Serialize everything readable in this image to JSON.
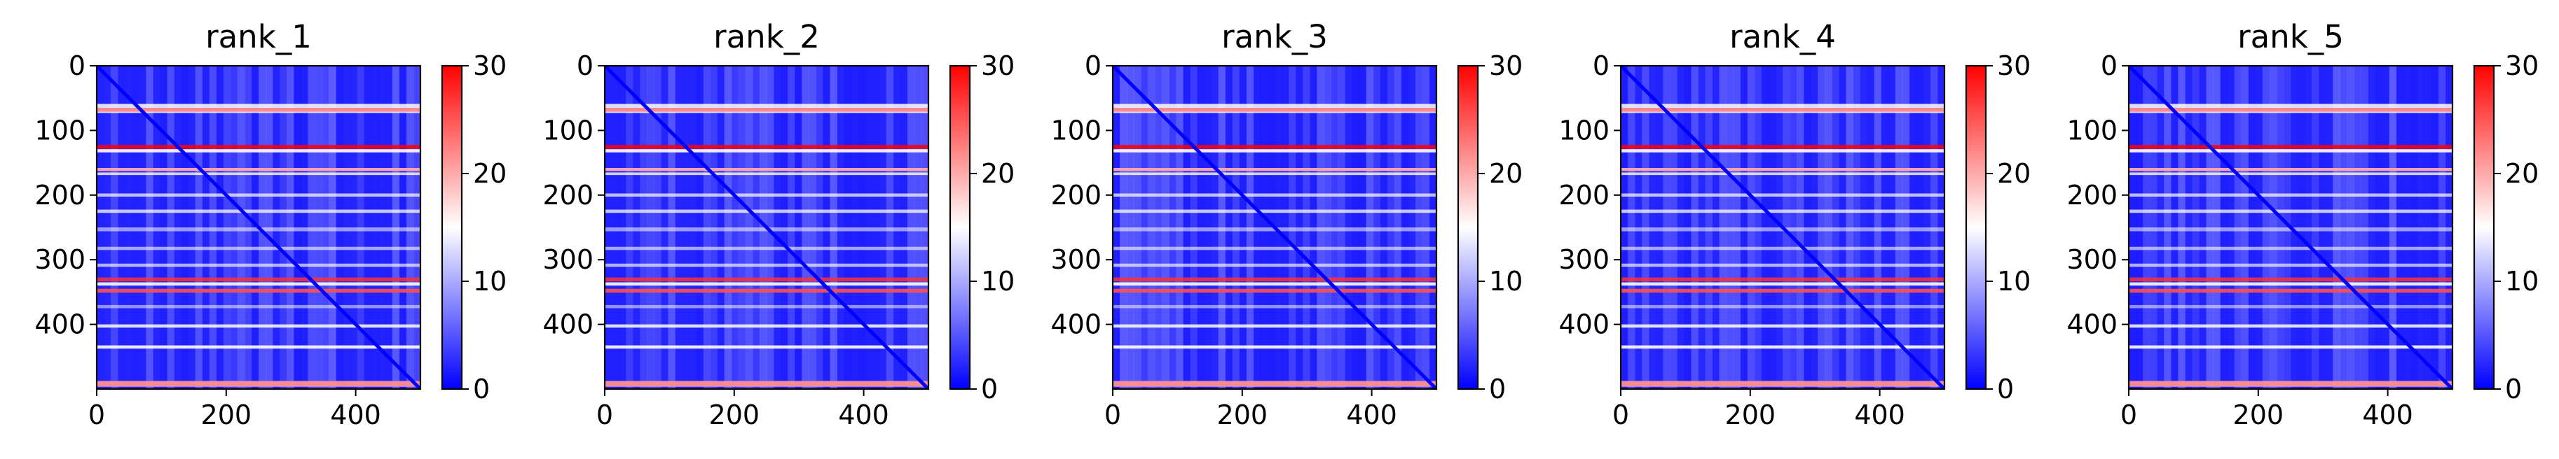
{
  "colors": {
    "low": "#0000ff",
    "mid": "#ffffff",
    "high": "#ff0000"
  },
  "chart_data": [
    {
      "type": "heatmap",
      "title": "rank_1",
      "matrix_size": 500,
      "colormap": "bwr",
      "xticks": [
        0,
        200,
        400
      ],
      "yticks": [
        0,
        100,
        200,
        300,
        400
      ],
      "colorbar": {
        "range": [
          0,
          30
        ],
        "ticks": [
          0,
          10,
          20,
          30
        ]
      },
      "xlabel": "",
      "ylabel": ""
    },
    {
      "type": "heatmap",
      "title": "rank_2",
      "matrix_size": 500,
      "colormap": "bwr",
      "xticks": [
        0,
        200,
        400
      ],
      "yticks": [
        0,
        100,
        200,
        300,
        400
      ],
      "colorbar": {
        "range": [
          0,
          30
        ],
        "ticks": [
          0,
          10,
          20,
          30
        ]
      },
      "xlabel": "",
      "ylabel": ""
    },
    {
      "type": "heatmap",
      "title": "rank_3",
      "matrix_size": 500,
      "colormap": "bwr",
      "xticks": [
        0,
        200,
        400
      ],
      "yticks": [
        0,
        100,
        200,
        300,
        400
      ],
      "colorbar": {
        "range": [
          0,
          30
        ],
        "ticks": [
          0,
          10,
          20,
          30
        ]
      },
      "xlabel": "",
      "ylabel": ""
    },
    {
      "type": "heatmap",
      "title": "rank_4",
      "matrix_size": 500,
      "colormap": "bwr",
      "xticks": [
        0,
        200,
        400
      ],
      "yticks": [
        0,
        100,
        200,
        300,
        400
      ],
      "colorbar": {
        "range": [
          0,
          30
        ],
        "ticks": [
          0,
          10,
          20,
          30
        ]
      },
      "xlabel": "",
      "ylabel": ""
    },
    {
      "type": "heatmap",
      "title": "rank_5",
      "matrix_size": 500,
      "colormap": "bwr",
      "xticks": [
        0,
        200,
        400
      ],
      "yticks": [
        0,
        100,
        200,
        300,
        400
      ],
      "colorbar": {
        "range": [
          0,
          30
        ],
        "ticks": [
          0,
          10,
          20,
          30
        ]
      },
      "xlabel": "",
      "ylabel": ""
    }
  ]
}
